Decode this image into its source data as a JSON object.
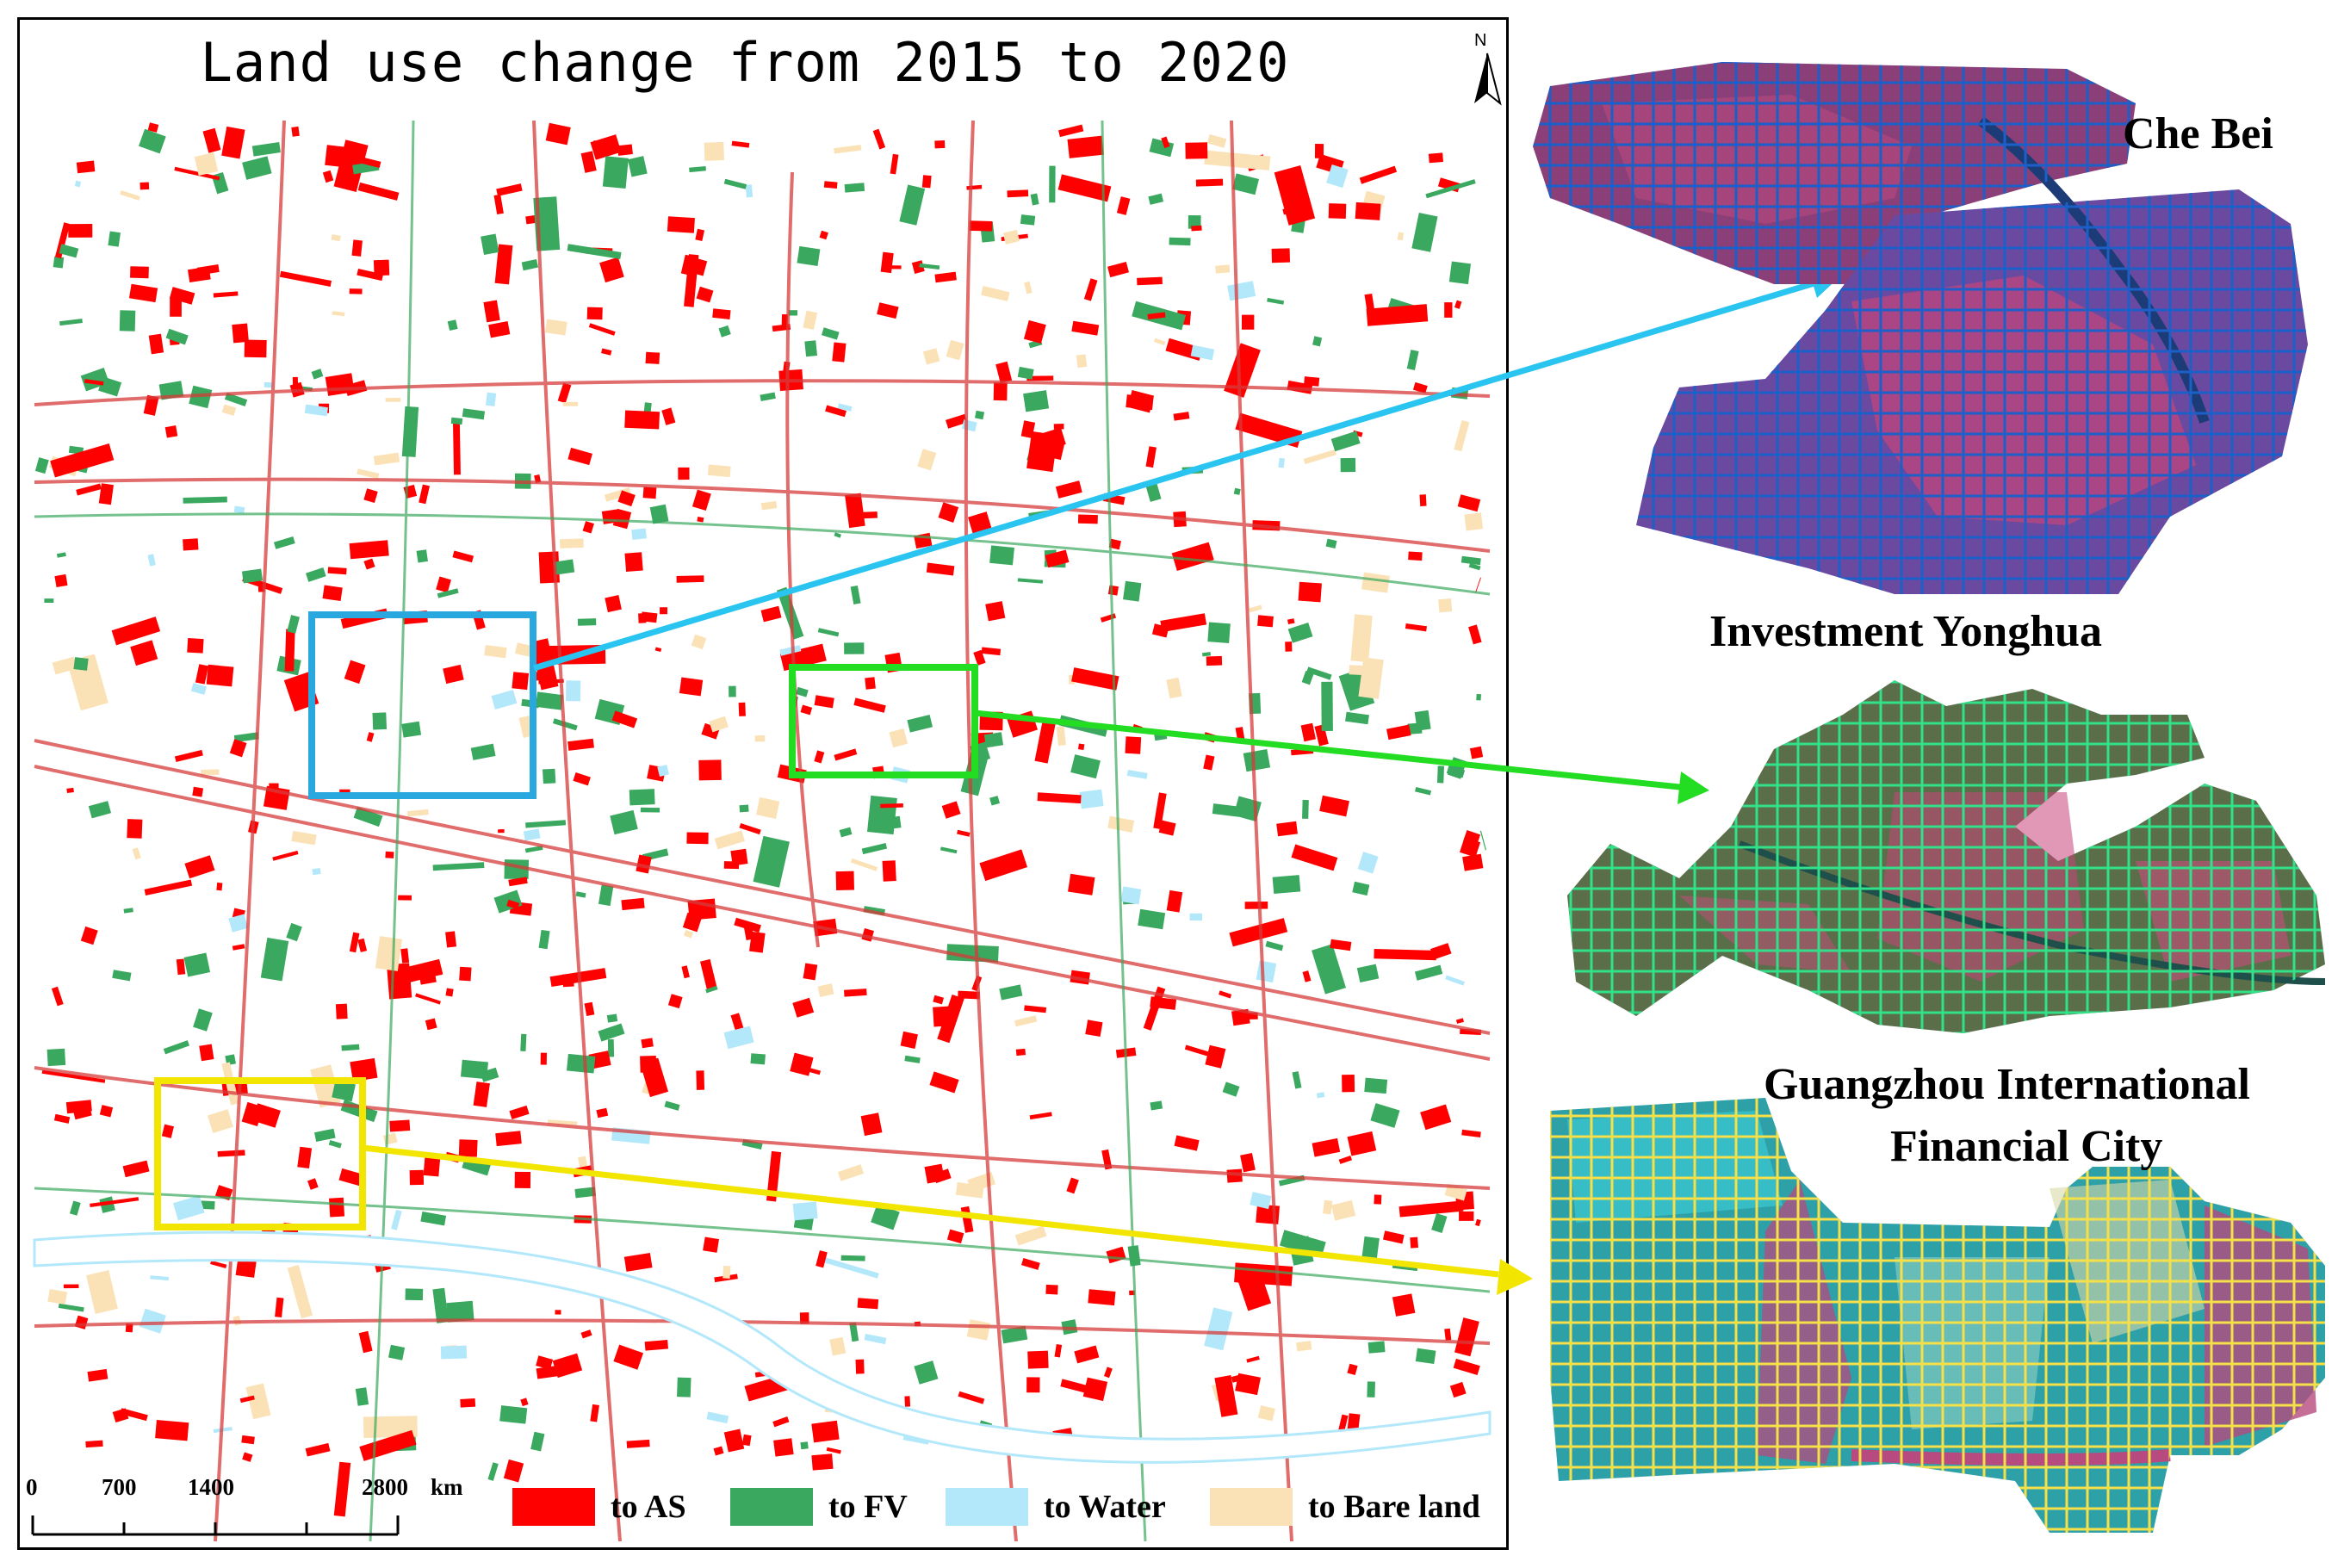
{
  "map": {
    "title": "Land use change from 2015 to 2020",
    "north_label": "N"
  },
  "scale_bar": {
    "ticks": [
      "0",
      "700",
      "1400",
      "2800"
    ],
    "unit": "km"
  },
  "legend": [
    {
      "label": "to AS",
      "color": "#ff0000"
    },
    {
      "label": "to FV",
      "color": "#3aa85e"
    },
    {
      "label": "to Water",
      "color": "#b3e8fb"
    },
    {
      "label": "to Bare land",
      "color": "#fbe2b6"
    }
  ],
  "regions": [
    {
      "name": "Che Bei",
      "line1": "Che Bei",
      "line2": "",
      "box_color": "#29a8e0",
      "tint": "#3f6ec8"
    },
    {
      "name": "Investment Yonghua",
      "line1": "Investment Yonghua",
      "line2": "",
      "box_color": "#22dd22",
      "tint": "#3fb47a"
    },
    {
      "name": "Guangzhou International Financial City",
      "line1": "Guangzhou International",
      "line2": "Financial City",
      "box_color": "#f2e600",
      "tint": "#35c0c8"
    }
  ]
}
